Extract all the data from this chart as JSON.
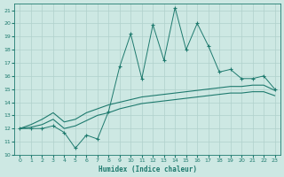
{
  "xlabel": "Humidex (Indice chaleur)",
  "background_color": "#cde8e3",
  "grid_color": "#b0d0cc",
  "line_color": "#1e7a6e",
  "xlim": [
    -0.5,
    23.5
  ],
  "ylim": [
    10,
    21.5
  ],
  "yticks": [
    10,
    11,
    12,
    13,
    14,
    15,
    16,
    17,
    18,
    19,
    20,
    21
  ],
  "xticks": [
    0,
    1,
    2,
    3,
    4,
    5,
    6,
    7,
    8,
    9,
    10,
    11,
    12,
    13,
    14,
    15,
    16,
    17,
    18,
    19,
    20,
    21,
    22,
    23
  ],
  "x": [
    0,
    1,
    2,
    3,
    4,
    5,
    6,
    7,
    8,
    9,
    10,
    11,
    12,
    13,
    14,
    15,
    16,
    17,
    18,
    19,
    20,
    21,
    22,
    23
  ],
  "jagged": [
    12.0,
    12.0,
    12.0,
    12.2,
    11.7,
    10.5,
    11.5,
    11.2,
    13.3,
    16.7,
    19.2,
    15.8,
    19.9,
    17.2,
    21.2,
    18.0,
    20.0,
    18.3,
    16.3,
    16.5,
    15.8,
    15.8,
    16.0,
    15.0
  ],
  "upper": [
    12.0,
    12.3,
    12.7,
    13.2,
    12.5,
    12.7,
    13.2,
    13.5,
    13.8,
    14.0,
    14.2,
    14.4,
    14.5,
    14.6,
    14.7,
    14.8,
    14.9,
    15.0,
    15.1,
    15.2,
    15.2,
    15.3,
    15.3,
    14.9
  ],
  "lower": [
    12.0,
    12.1,
    12.3,
    12.7,
    12.0,
    12.2,
    12.6,
    13.0,
    13.2,
    13.5,
    13.7,
    13.9,
    14.0,
    14.1,
    14.2,
    14.3,
    14.4,
    14.5,
    14.6,
    14.7,
    14.7,
    14.8,
    14.8,
    14.5
  ]
}
